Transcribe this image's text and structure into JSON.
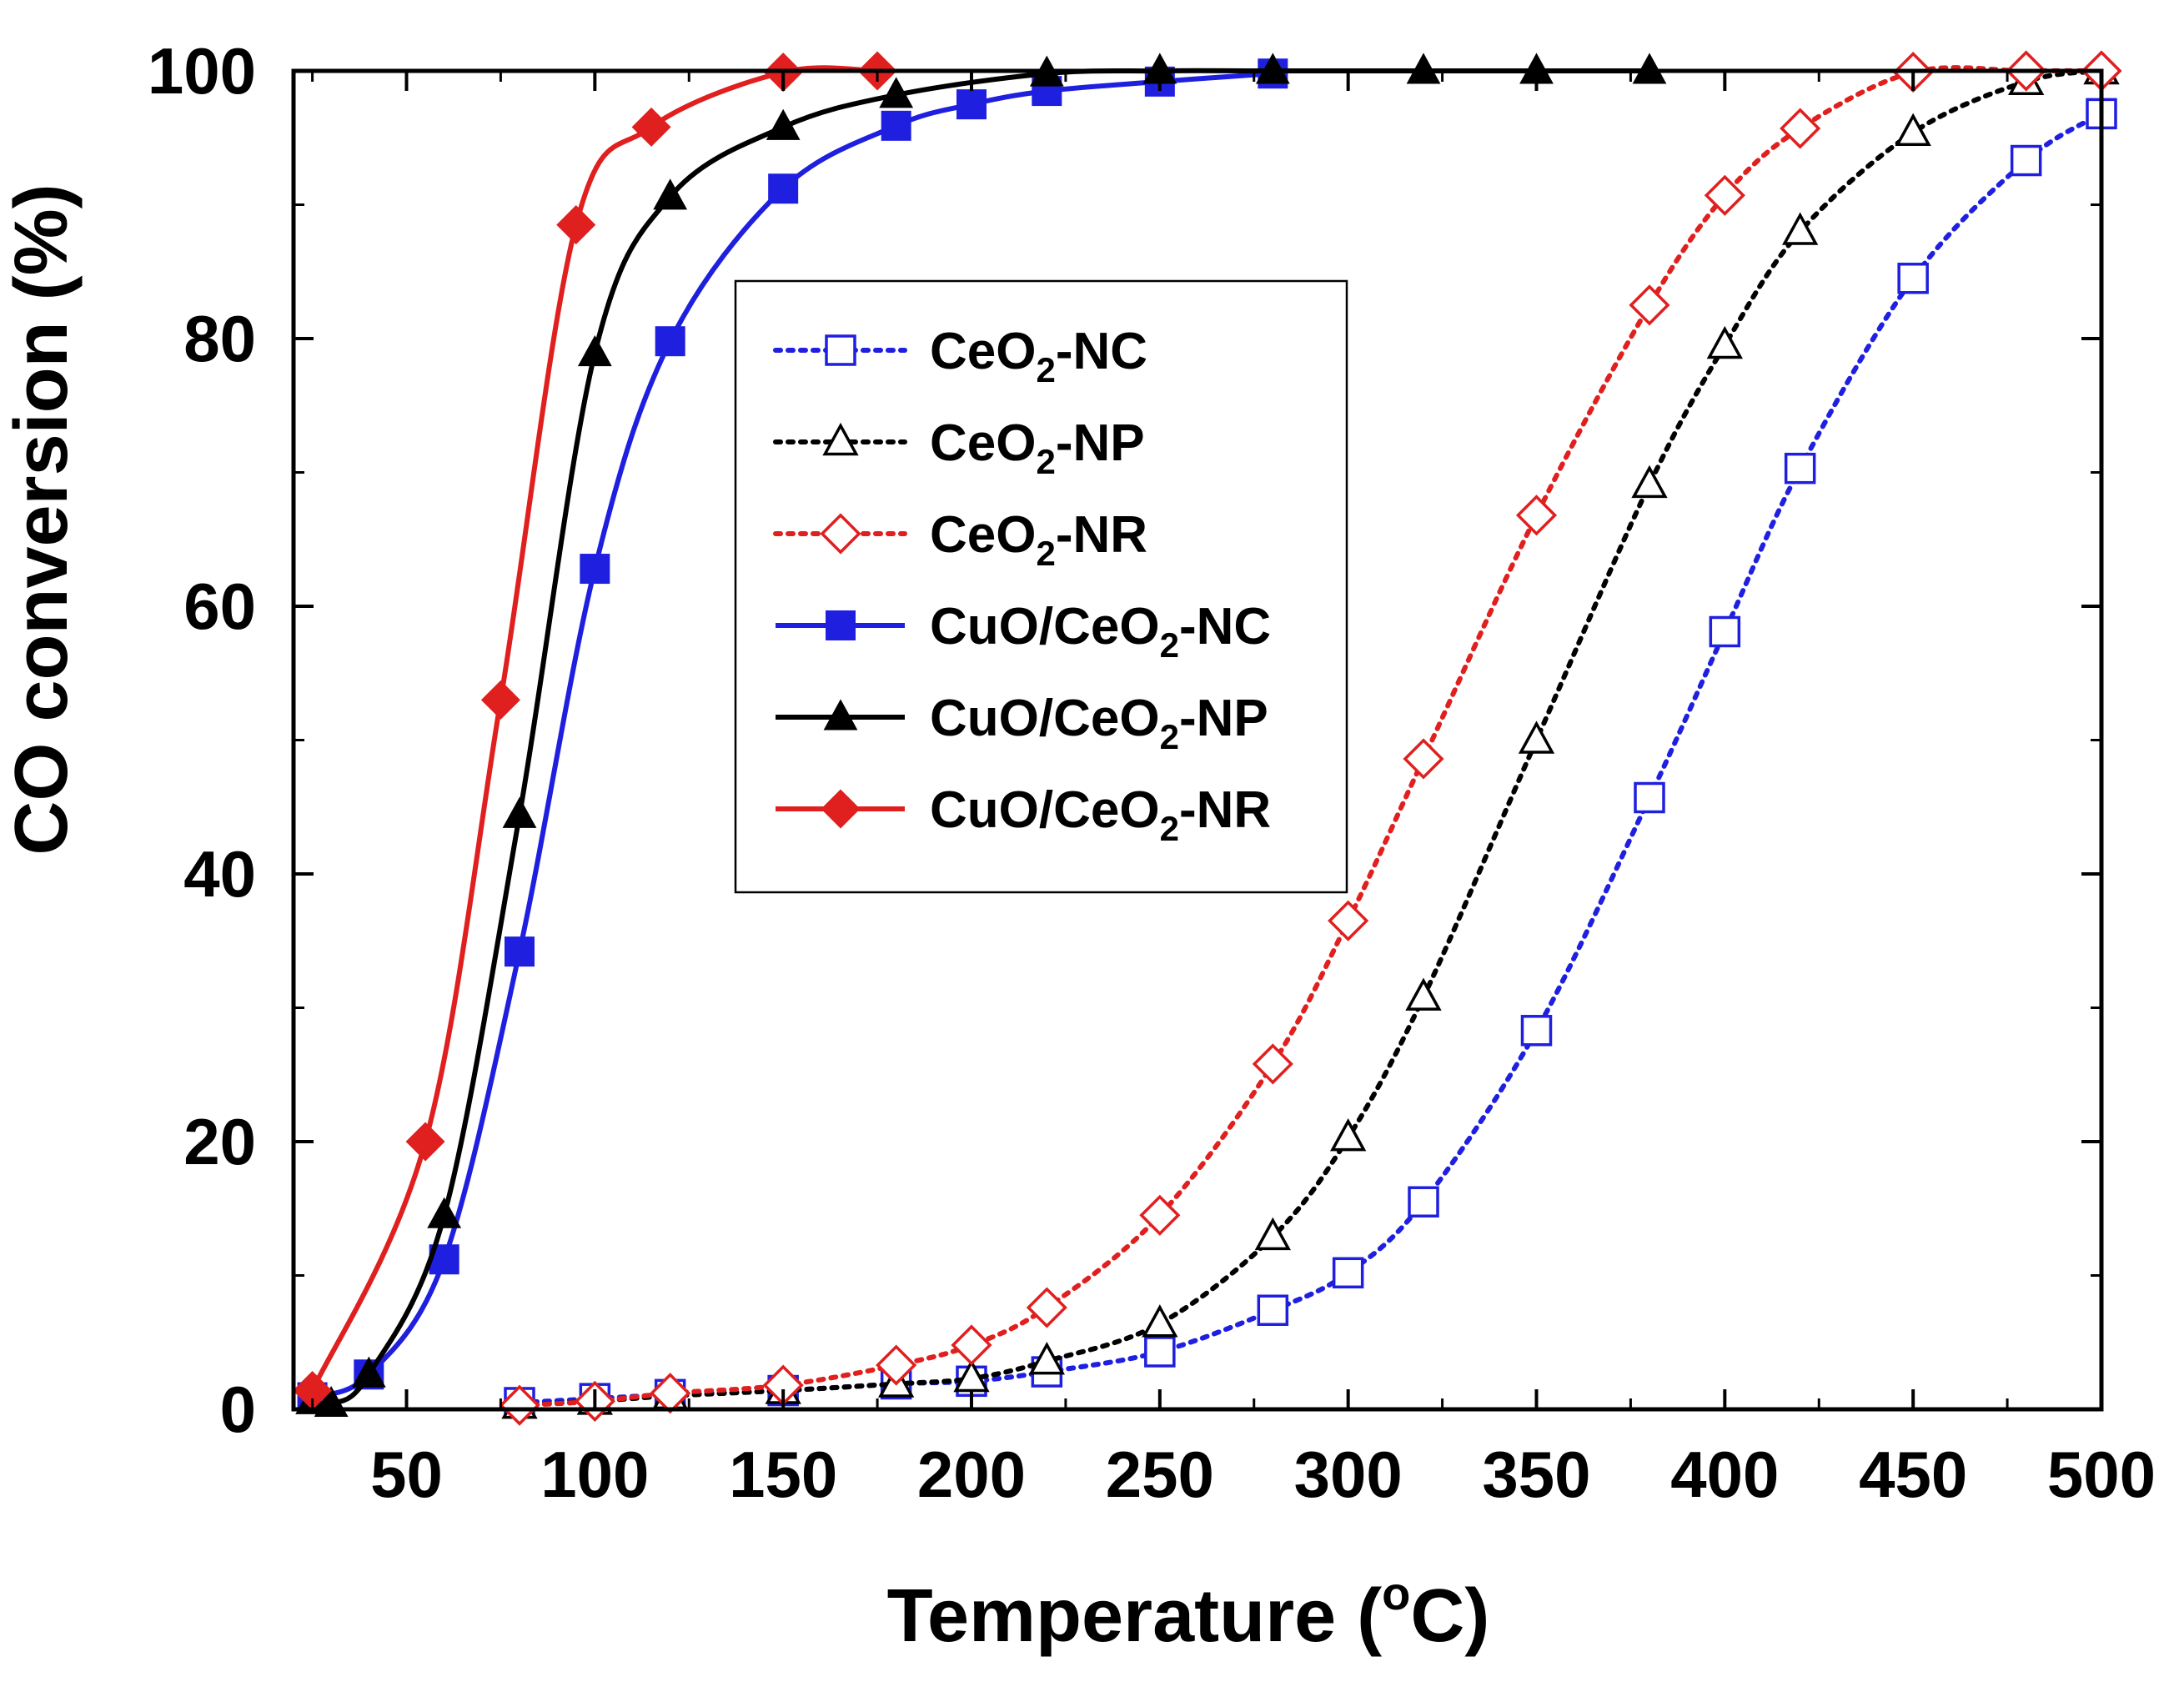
{
  "chart_data": {
    "type": "line",
    "xlabel": "Temperature (",
    "xlabel_sup": "o",
    "xlabel_tail": "C)",
    "ylabel": "CO conversion (%)",
    "xlim": [
      20,
      500
    ],
    "ylim": [
      0,
      100
    ],
    "x_ticks": [
      50,
      100,
      150,
      200,
      250,
      300,
      350,
      400,
      450,
      500
    ],
    "y_ticks": [
      0,
      20,
      40,
      60,
      80,
      100
    ],
    "legend_position": "center-left",
    "series": [
      {
        "name": "CeO2-NC",
        "label_main": "CeO",
        "label_sub": "2",
        "label_tail": "-NC",
        "color": "#1f1fe0",
        "dashed": true,
        "marker": "square",
        "filled": false,
        "x": [
          80,
          100,
          120,
          150,
          180,
          200,
          220,
          250,
          280,
          300,
          320,
          350,
          380,
          400,
          420,
          450,
          480,
          500
        ],
        "y": [
          0.5,
          0.8,
          1.1,
          1.4,
          1.9,
          2.1,
          2.8,
          4.3,
          7.4,
          10.2,
          15.5,
          28.3,
          45.7,
          58.1,
          70.3,
          84.5,
          93.3,
          96.8
        ]
      },
      {
        "name": "CeO2-NP",
        "label_main": "CeO",
        "label_sub": "2",
        "label_tail": "-NP",
        "color": "#000000",
        "dashed": true,
        "marker": "triangle",
        "filled": false,
        "x": [
          80,
          100,
          120,
          150,
          180,
          200,
          220,
          250,
          280,
          300,
          320,
          350,
          380,
          400,
          420,
          450,
          480,
          500
        ],
        "y": [
          0.3,
          0.6,
          1.0,
          1.4,
          1.9,
          2.3,
          3.6,
          6.4,
          12.9,
          20.3,
          30.8,
          50.0,
          69.1,
          79.5,
          88.0,
          95.4,
          99.2,
          100
        ]
      },
      {
        "name": "CeO2-NR",
        "label_main": "CeO",
        "label_sub": "2",
        "label_tail": "-NR",
        "color": "#e01f1f",
        "dashed": true,
        "marker": "diamond",
        "filled": false,
        "x": [
          80,
          100,
          120,
          150,
          180,
          200,
          220,
          250,
          280,
          300,
          320,
          350,
          380,
          400,
          420,
          450,
          480,
          500
        ],
        "y": [
          0.3,
          0.6,
          1.2,
          1.8,
          3.3,
          4.8,
          7.6,
          14.5,
          25.8,
          36.5,
          48.6,
          66.8,
          82.5,
          90.7,
          95.7,
          99.9,
          100,
          100
        ]
      },
      {
        "name": "CuO/CeO2-NC",
        "label_main": "CuO/CeO",
        "label_sub": "2",
        "label_tail": "-NC",
        "color": "#1f1fe0",
        "dashed": false,
        "marker": "square",
        "filled": true,
        "x": [
          25,
          40,
          60,
          80,
          100,
          120,
          150,
          180,
          200,
          220,
          250,
          280
        ],
        "y": [
          0.9,
          2.6,
          11.2,
          34.2,
          62.8,
          79.8,
          91.2,
          95.9,
          97.5,
          98.5,
          99.2,
          99.8
        ]
      },
      {
        "name": "CuO/CeO2-NP",
        "label_main": "CuO/CeO",
        "label_sub": "2",
        "label_tail": "-NP",
        "color": "#000000",
        "dashed": false,
        "marker": "triangle",
        "filled": true,
        "x": [
          25,
          30,
          40,
          60,
          80,
          100,
          120,
          150,
          180,
          220,
          250,
          280,
          320,
          350,
          380
        ],
        "y": [
          0.6,
          0.4,
          2.6,
          14.5,
          44.4,
          78.9,
          90.6,
          95.8,
          98.2,
          99.8,
          100,
          100,
          100,
          100,
          100
        ]
      },
      {
        "name": "CuO/CeO2-NR",
        "label_main": "CuO/CeO",
        "label_sub": "2",
        "label_tail": "-NR",
        "color": "#e01f1f",
        "dashed": false,
        "marker": "diamond",
        "filled": true,
        "x": [
          25,
          55,
          75,
          95,
          115,
          150,
          175
        ],
        "y": [
          1.4,
          20.0,
          53.0,
          88.5,
          95.8,
          99.9,
          100
        ]
      }
    ]
  }
}
